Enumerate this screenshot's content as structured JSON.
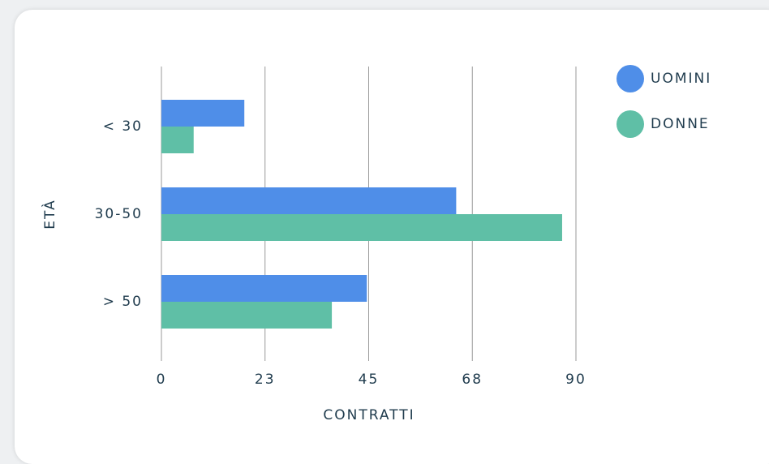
{
  "chart_data": {
    "type": "barh",
    "categories": [
      "< 30",
      "30-50",
      "> 50"
    ],
    "series": [
      {
        "name": "UOMINI",
        "color": "#4f8ee8",
        "values": [
          18,
          64,
          44.6
        ]
      },
      {
        "name": "DONNE",
        "color": "#5fbfa6",
        "values": [
          7,
          87,
          37
        ]
      }
    ],
    "xlim": [
      0,
      90
    ],
    "xticks": [
      0,
      {
        "value": 22.5,
        "label": "23"
      },
      45,
      {
        "value": 67.5,
        "label": "68"
      },
      90
    ],
    "xlabel": "CONTRATTI",
    "ylabel": "ETÀ",
    "grid": true,
    "legend": "top-right"
  }
}
